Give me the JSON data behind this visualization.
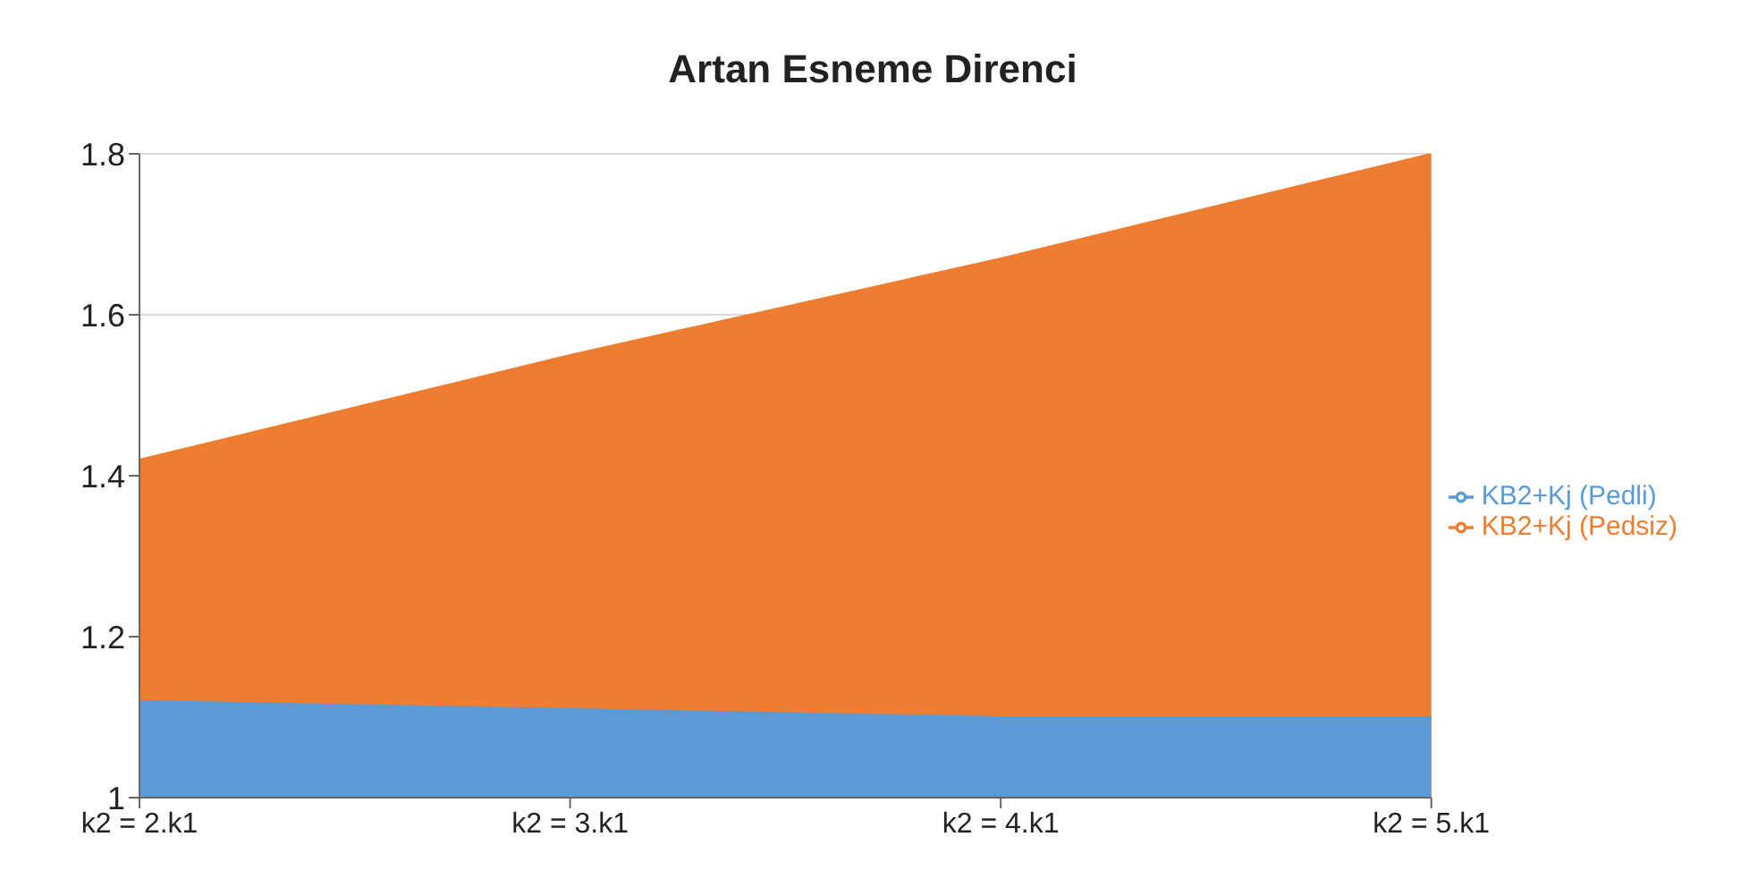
{
  "chart_data": {
    "type": "area",
    "title": "Artan Esneme Direnci",
    "categories": [
      "k2 = 2.k1",
      "k2 = 3.k1",
      "k2 = 4.k1",
      "k2 = 5.k1"
    ],
    "series": [
      {
        "name": "KB2+Kj (Pedsiz)",
        "color": "#ed7d31",
        "values": [
          1.42,
          1.55,
          1.67,
          1.8
        ]
      },
      {
        "name": "KB2+Kj (Pedli)",
        "color": "#5b9bd5",
        "values": [
          1.12,
          1.11,
          1.1,
          1.1
        ]
      }
    ],
    "ylim": [
      1,
      1.8
    ],
    "yticks": [
      1,
      1.2,
      1.4,
      1.6,
      1.8
    ],
    "grid": "y",
    "legend": "right"
  }
}
